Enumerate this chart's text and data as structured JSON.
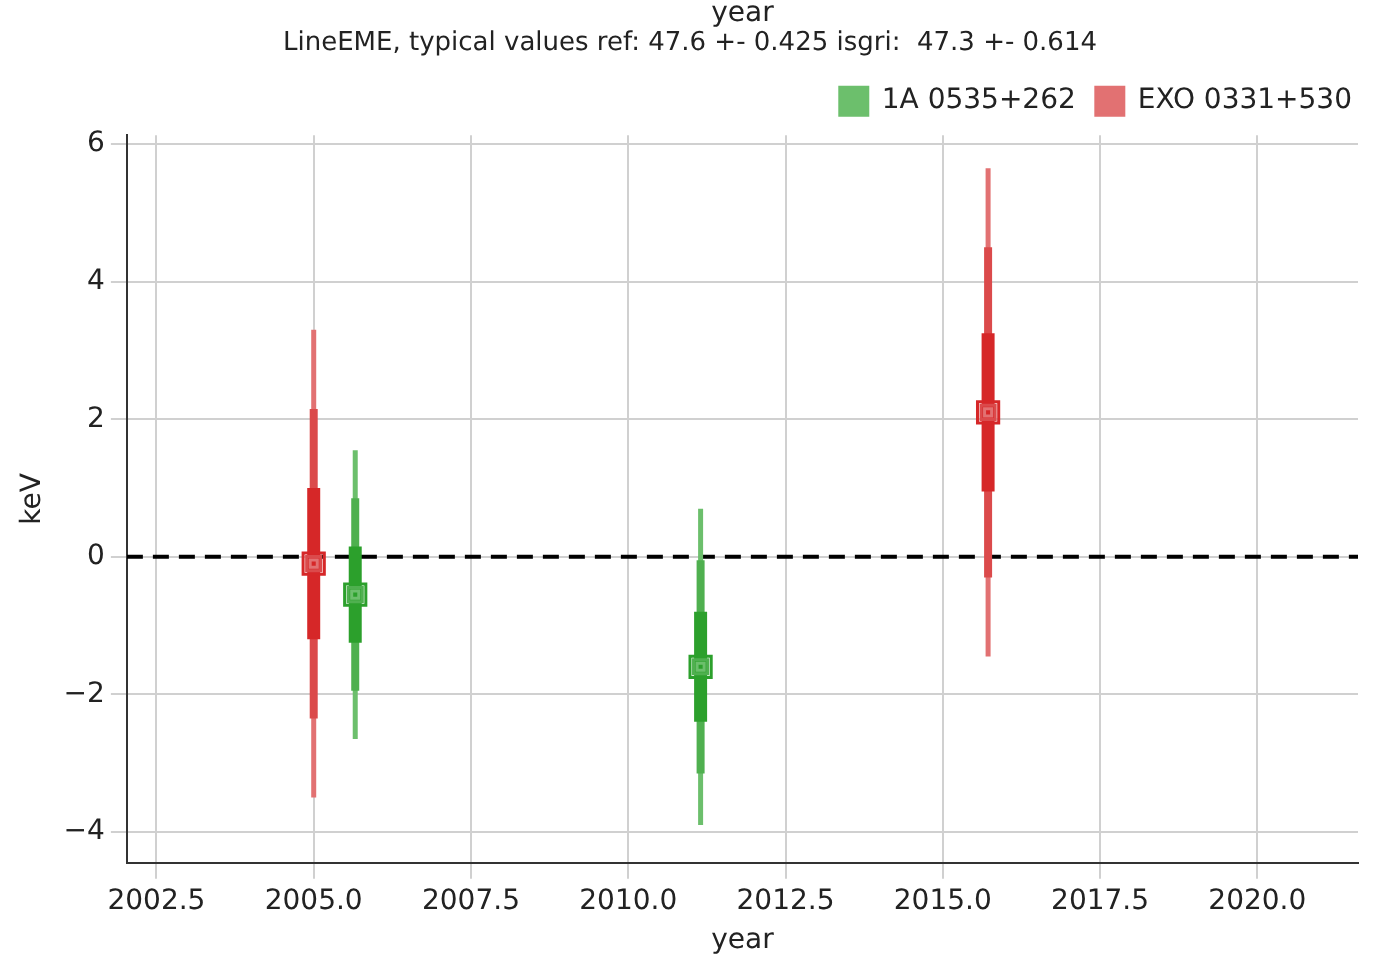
{
  "chart_data": {
    "type": "scatter",
    "title": "LineEME, typical values ref: 47.6 +- 0.425 isgri:  47.3 +- 0.614",
    "xlabel": "year",
    "ylabel": "keV",
    "annotations": [
      "year"
    ],
    "series": [
      {
        "name": "1A 0535+262",
        "color": "#6cbf6c",
        "x": [
          2005.66,
          2011.15
        ],
        "values": [
          -0.55,
          -1.6
        ],
        "errors": [
          2.1,
          2.3
        ]
      },
      {
        "color": "#4fb04f",
        "x": [
          2005.66,
          2011.15
        ],
        "values": [
          -0.55,
          -1.6
        ],
        "errors": [
          1.4,
          1.55
        ]
      },
      {
        "color": "#2ca02c",
        "x": [
          2005.66,
          2011.15
        ],
        "values": [
          -0.55,
          -1.6
        ],
        "errors": [
          0.7,
          0.8
        ]
      },
      {
        "name": "EXO 0331+530",
        "color": "#e27172",
        "x": [
          2005.0,
          2015.72
        ],
        "values": [
          -0.1,
          2.1
        ],
        "errors": [
          3.4,
          3.55
        ]
      },
      {
        "color": "#db4a4b",
        "x": [
          2005.0,
          2015.72
        ],
        "values": [
          -0.1,
          2.1
        ],
        "errors": [
          2.25,
          2.4
        ]
      },
      {
        "color": "#d62728",
        "x": [
          2005.0,
          2015.72
        ],
        "values": [
          -0.1,
          2.1
        ],
        "errors": [
          1.1,
          1.15
        ]
      }
    ],
    "xlim": [
      2002.03,
      2021.6
    ],
    "xticks": [
      {
        "value": 2002.5,
        "label": "2002.5"
      },
      {
        "value": 2005,
        "label": "2005.0"
      },
      {
        "value": 2007.5,
        "label": "2007.5"
      },
      {
        "value": 2010,
        "label": "2010.0"
      },
      {
        "value": 2012.5,
        "label": "2012.5"
      },
      {
        "value": 2015,
        "label": "2015.0"
      },
      {
        "value": 2017.5,
        "label": "2017.5"
      },
      {
        "value": 2020,
        "label": "2020.0"
      }
    ],
    "ylim": [
      -4.45,
      6.13
    ],
    "yticks": [
      {
        "value": -4,
        "label": "−4"
      },
      {
        "value": -2,
        "label": "−2"
      },
      0,
      2,
      4,
      6
    ],
    "ref_lines": [
      {
        "axis": "y",
        "value": 0,
        "color": "#000000",
        "line_style": "dashed"
      }
    ],
    "grid": true,
    "legend": "top right",
    "marker": "square"
  }
}
